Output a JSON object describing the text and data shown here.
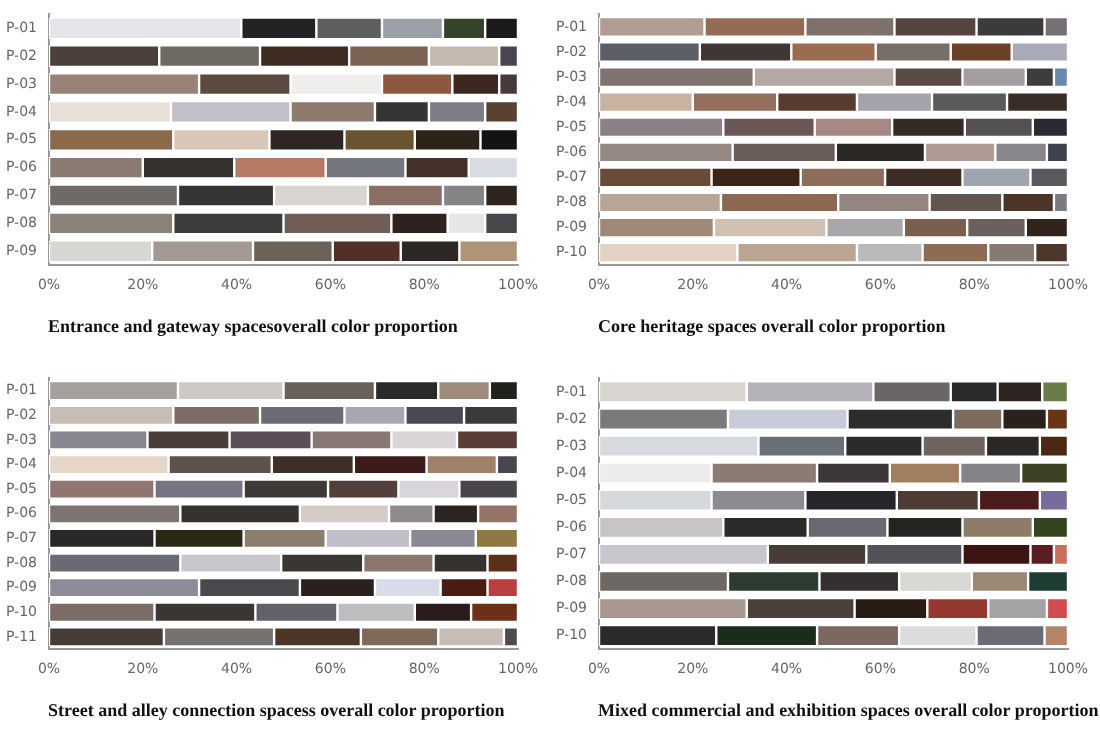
{
  "chart_data": [
    {
      "type": "bar",
      "orientation": "horizontal",
      "stacked": true,
      "grid": false,
      "title": "Entrance and gateway spacesoverall color proportion",
      "categories": [
        "P-01",
        "P-02",
        "P-03",
        "P-04",
        "P-05",
        "P-06",
        "P-07",
        "P-08",
        "P-09"
      ],
      "xlim": [
        0,
        100
      ],
      "xticks": [
        {
          "value": 0,
          "label": "0%"
        },
        {
          "value": 20,
          "label": "20%"
        },
        {
          "value": 40,
          "label": "40%"
        },
        {
          "value": 60,
          "label": "60%"
        },
        {
          "value": 80,
          "label": "80%"
        },
        {
          "value": 100,
          "label": "100%"
        }
      ],
      "series": [
        {
          "values": [
            41,
            23.5,
            32,
            26,
            26.5,
            20,
            27.5,
            26.5,
            22
          ],
          "colors": [
            "#e3e5e8",
            "#4a3f3a",
            "#9a8276",
            "#e8e0d8",
            "#8a6a48",
            "#8a7a72",
            "#6e6a68",
            "#8a8478",
            "#d8d6d2"
          ]
        },
        {
          "values": [
            16,
            21.5,
            19.5,
            25.5,
            20.5,
            19.5,
            20.5,
            23.5,
            21.5
          ],
          "colors": [
            "#232325",
            "#6e6a64",
            "#5a4a40",
            "#c4c0c8",
            "#d8c6b6",
            "#363230",
            "#363432",
            "#3c3c3a",
            "#a29a92"
          ]
        },
        {
          "values": [
            14,
            19,
            19.5,
            18,
            16,
            19.5,
            20,
            23,
            17
          ],
          "colors": [
            "#5e605f",
            "#3f2c22",
            "#f0eeec",
            "#8c7a6e",
            "#2e2624",
            "#b47a64",
            "#d8d4d0",
            "#6e5e54",
            "#6c6258"
          ]
        },
        {
          "values": [
            13,
            17,
            15,
            11.5,
            15,
            17,
            16,
            12,
            14.5
          ],
          "colors": [
            "#9aa0a6",
            "#7c6252",
            "#8c5840",
            "#363434",
            "#6a5430",
            "#747680",
            "#8a7064",
            "#2e2220",
            "#503028"
          ]
        },
        {
          "values": [
            9,
            15,
            10,
            12,
            14,
            13.5,
            9,
            8,
            12.5
          ],
          "colors": [
            "#34432a",
            "#c6bab0",
            "#3c2820",
            "#7e7e84",
            "#2c2418",
            "#44322a",
            "#848486",
            "#e4e6e8",
            "#2c2624"
          ]
        },
        {
          "values": [
            7,
            4,
            4,
            7,
            8,
            10.5,
            7,
            7,
            12.5
          ],
          "colors": [
            "#1c1a18",
            "#4a4550",
            "#463a3c",
            "#5a4030",
            "#141212",
            "#d8dce2",
            "#30241e",
            "#48484c",
            "#b09478"
          ]
        }
      ]
    },
    {
      "type": "bar",
      "orientation": "horizontal",
      "stacked": true,
      "grid": false,
      "title": "Core heritage spaces overall color proportion",
      "categories": [
        "P-01",
        "P-02",
        "P-03",
        "P-04",
        "P-05",
        "P-06",
        "P-07",
        "P-08",
        "P-09",
        "P-10"
      ],
      "xlim": [
        0,
        100
      ],
      "xticks": [
        {
          "value": 0,
          "label": "0%"
        },
        {
          "value": 20,
          "label": "20%"
        },
        {
          "value": 40,
          "label": "40%"
        },
        {
          "value": 60,
          "label": "60%"
        },
        {
          "value": 80,
          "label": "80%"
        },
        {
          "value": 100,
          "label": "100%"
        }
      ],
      "series": [
        {
          "values": [
            22.5,
            21.5,
            33,
            20,
            26.5,
            28.5,
            24,
            26,
            24.5,
            29.5
          ],
          "colors": [
            "#b09c90",
            "#5c5e66",
            "#807470",
            "#c8b2a2",
            "#8c8088",
            "#958882",
            "#6a4a38",
            "#b6a698",
            "#a08878",
            "#e2d2c4"
          ]
        },
        {
          "values": [
            21.5,
            19.5,
            30,
            18,
            19.5,
            22,
            19,
            25,
            24,
            25.5
          ],
          "colors": [
            "#946c56",
            "#403634",
            "#b4a8a4",
            "#94705c",
            "#6a5654",
            "#6a5c58",
            "#3c2418",
            "#8c6852",
            "#d0c0b2",
            "#bca492"
          ]
        },
        {
          "values": [
            19,
            18,
            14.5,
            17,
            16.5,
            19,
            18,
            19.5,
            16.5,
            14
          ],
          "colors": [
            "#7e706a",
            "#9c6c50",
            "#5a4a44",
            "#583a2e",
            "#a68884",
            "#2c2826",
            "#8c6c5a",
            "#948482",
            "#a8a6a8",
            "#bcbab8"
          ]
        },
        {
          "values": [
            17.5,
            16,
            13.5,
            16,
            15.5,
            15,
            16.5,
            15.5,
            13.5,
            14
          ],
          "colors": [
            "#564440",
            "#787068",
            "#a29ea2",
            "#a4a2aa",
            "#342a28",
            "#b09a94",
            "#3c2c24",
            "#625650",
            "#7a5e4e",
            "#8c6c54"
          ]
        },
        {
          "values": [
            14.5,
            13,
            6,
            16,
            14.5,
            11,
            14.5,
            11,
            12.5,
            10
          ],
          "colors": [
            "#3c3a3a",
            "#6a4028",
            "#3e3c3c",
            "#5a5a5a",
            "#545054",
            "#88868a",
            "#9ea4b0",
            "#4c3428",
            "#6a605c",
            "#867a74"
          ]
        },
        {
          "values": [
            5,
            12,
            3,
            13,
            7.5,
            4.5,
            8,
            3,
            9,
            7
          ],
          "colors": [
            "#747076",
            "#a8aab8",
            "#6888b0",
            "#3a2c26",
            "#2a2a34",
            "#3e424c",
            "#5a5a5e",
            "#7c7a80",
            "#30241c",
            "#4c3828"
          ]
        }
      ]
    },
    {
      "type": "bar",
      "orientation": "horizontal",
      "stacked": true,
      "grid": false,
      "title": "Street and alley connection spacess overall color proportion",
      "categories": [
        "P-01",
        "P-02",
        "P-03",
        "P-04",
        "P-05",
        "P-06",
        "P-07",
        "P-08",
        "P-09",
        "P-10",
        "P-11"
      ],
      "xlim": [
        0,
        100
      ],
      "xticks": [
        {
          "value": 0,
          "label": "0%"
        },
        {
          "value": 20,
          "label": "20%"
        },
        {
          "value": 40,
          "label": "40%"
        },
        {
          "value": 60,
          "label": "60%"
        },
        {
          "value": 80,
          "label": "80%"
        },
        {
          "value": 100,
          "label": "100%"
        }
      ],
      "series": [
        {
          "values": [
            27.5,
            26.5,
            21,
            25.5,
            22.5,
            28,
            22.5,
            28,
            32,
            22.5,
            24.5
          ],
          "colors": [
            "#a4a09c",
            "#c8bcb4",
            "#8a8690",
            "#e6d6c8",
            "#907670",
            "#7c7470",
            "#2a2826",
            "#6a6a74",
            "#8c8c98",
            "#7c6c66",
            "#463c38"
          ]
        },
        {
          "values": [
            22.5,
            18.5,
            17.5,
            22,
            19,
            25.5,
            19,
            21.5,
            21.5,
            21.5,
            23.5
          ],
          "colors": [
            "#cdcac6",
            "#7c6c68",
            "#4a3e3a",
            "#5e524c",
            "#767480",
            "#363230",
            "#2c2818",
            "#c8c6cc",
            "#4a4a4e",
            "#3a3634",
            "#767270"
          ]
        },
        {
          "values": [
            19.5,
            18,
            17.5,
            17.5,
            18,
            19,
            17.5,
            17.5,
            16,
            17.5,
            18.5
          ],
          "colors": [
            "#6a605a",
            "#6c6a74",
            "#5c4e58",
            "#3e3028",
            "#3e3a38",
            "#d4ccc6",
            "#8c7e6e",
            "#3a3634",
            "#2a201c",
            "#64606a",
            "#4c3628"
          ]
        },
        {
          "values": [
            13.5,
            13,
            17,
            15.5,
            15,
            9.5,
            18,
            15,
            14,
            16.5,
            16.5
          ],
          "colors": [
            "#2c2a28",
            "#a8a6b0",
            "#8a7874",
            "#3c1c18",
            "#54403a",
            "#8e8a8e",
            "#c0bec8",
            "#8a7870",
            "#d6dce8",
            "#bcbec0",
            "#80685a"
          ]
        },
        {
          "values": [
            11,
            12.5,
            14,
            15,
            13,
            9.5,
            14,
            11.5,
            10,
            12,
            14
          ],
          "colors": [
            "#a08c7c",
            "#4a4850",
            "#d8d4d8",
            "#a08068",
            "#d8d6da",
            "#2c2420",
            "#8a8890",
            "#363230",
            "#4a1c14",
            "#2a1c1a",
            "#c8bcb4"
          ]
        },
        {
          "values": [
            6,
            11.5,
            13,
            4.5,
            12.5,
            8.5,
            9,
            6.5,
            6.5,
            10,
            3
          ],
          "colors": [
            "#22221c",
            "#3c3a38",
            "#5a3e36",
            "#484650",
            "#48464c",
            "#947468",
            "#8c7a40",
            "#5a3018",
            "#b84040",
            "#6c3018",
            "#504a4c"
          ]
        }
      ]
    },
    {
      "type": "bar",
      "orientation": "horizontal",
      "stacked": true,
      "grid": false,
      "title": "Mixed commercial and exhibition spaces overall color proportion",
      "categories": [
        "P-01",
        "P-02",
        "P-03",
        "P-04",
        "P-05",
        "P-06",
        "P-07",
        "P-08",
        "P-09",
        "P-10"
      ],
      "xlim": [
        0,
        100
      ],
      "xticks": [
        {
          "value": 0,
          "label": "0%"
        },
        {
          "value": 20,
          "label": "20%"
        },
        {
          "value": 40,
          "label": "40%"
        },
        {
          "value": 60,
          "label": "60%"
        },
        {
          "value": 80,
          "label": "80%"
        },
        {
          "value": 100,
          "label": "100%"
        }
      ],
      "series": [
        {
          "values": [
            31.5,
            27.5,
            34,
            24,
            24,
            26.5,
            36,
            27.5,
            31.5,
            25
          ],
          "colors": [
            "#d8d4d0",
            "#7a7a7c",
            "#d6dade",
            "#ececec",
            "#d4dadc",
            "#c8c4c4",
            "#c8c6cc",
            "#6e6864",
            "#a89890",
            "#2a2a2a"
          ]
        },
        {
          "values": [
            27,
            25.5,
            18.5,
            22.5,
            20,
            18,
            21,
            19.5,
            23,
            21.5
          ],
          "colors": [
            "#b4b2b8",
            "#c8ccd8",
            "#6a7078",
            "#8a7c74",
            "#8c8c90",
            "#2c2a28",
            "#483c38",
            "#2c3c30",
            "#4c403c",
            "#1c2c1c"
          ]
        },
        {
          "values": [
            16.5,
            22.5,
            16.5,
            15.5,
            19.5,
            17,
            20.5,
            17,
            15.5,
            17.5
          ],
          "colors": [
            "#6a6668",
            "#2c2c2c",
            "#2c2a2a",
            "#3c3636",
            "#26262a",
            "#6a6870",
            "#545258",
            "#343030",
            "#2a1c14",
            "#7c6860"
          ]
        },
        {
          "values": [
            10,
            10.5,
            13.5,
            15,
            17.5,
            16,
            14.5,
            15.5,
            13,
            16.5
          ],
          "colors": [
            "#2a2a2c",
            "#7c6a5c",
            "#706460",
            "#a08060",
            "#4c3c34",
            "#262420",
            "#3c1414",
            "#d8d8d4",
            "#943830",
            "#dcdcdc"
          ]
        },
        {
          "values": [
            9.5,
            9.5,
            11.5,
            13,
            13,
            15,
            5,
            12,
            12.5,
            14.5
          ],
          "colors": [
            "#2c2420",
            "#2a201c",
            "#2c2826",
            "#848488",
            "#4c1c1c",
            "#8c7c68",
            "#5c1c24",
            "#9a8874",
            "#a4a2a4",
            "#6c6a74"
          ]
        },
        {
          "values": [
            5.5,
            4.5,
            6,
            10,
            6,
            7.5,
            3,
            8.5,
            4.5,
            5
          ],
          "colors": [
            "#6a7c48",
            "#6a3418",
            "#4c2814",
            "#3c4224",
            "#786c9c",
            "#34441c",
            "#c8705c",
            "#1c3c34",
            "#d04c50",
            "#b48468"
          ]
        }
      ]
    }
  ]
}
